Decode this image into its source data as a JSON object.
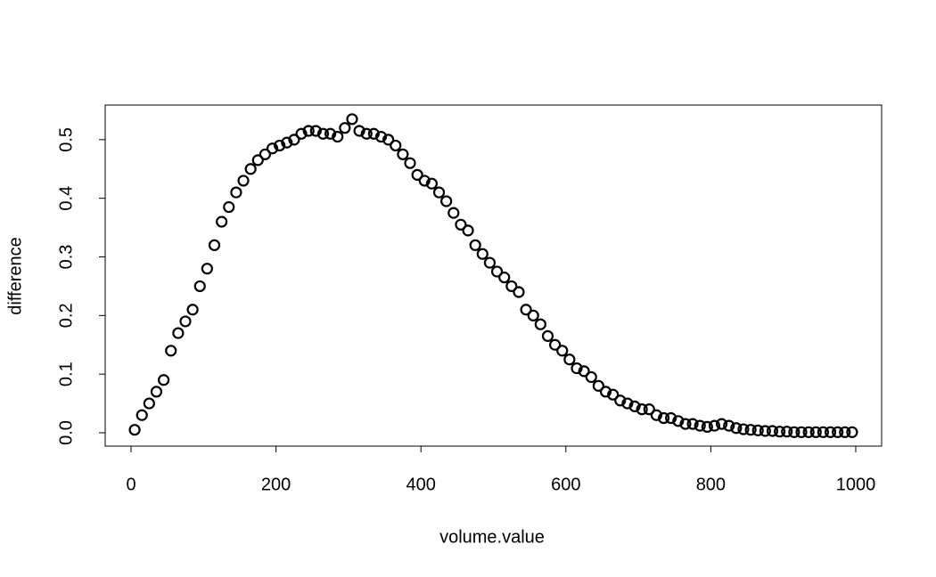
{
  "chart_data": {
    "type": "scatter",
    "xlabel": "volume.value",
    "ylabel": "difference",
    "color": "#000000",
    "x": [
      5,
      15,
      25,
      35,
      45,
      55,
      65,
      75,
      85,
      95,
      105,
      115,
      125,
      135,
      145,
      155,
      165,
      175,
      185,
      195,
      205,
      215,
      225,
      235,
      245,
      255,
      265,
      275,
      285,
      295,
      305,
      315,
      325,
      335,
      345,
      355,
      365,
      375,
      385,
      395,
      405,
      415,
      425,
      435,
      445,
      455,
      465,
      475,
      485,
      495,
      505,
      515,
      525,
      535,
      545,
      555,
      565,
      575,
      585,
      595,
      605,
      615,
      625,
      635,
      645,
      655,
      665,
      675,
      685,
      695,
      705,
      715,
      725,
      735,
      745,
      755,
      765,
      775,
      785,
      795,
      805,
      815,
      825,
      835,
      845,
      855,
      865,
      875,
      885,
      895,
      905,
      915,
      925,
      935,
      945,
      955,
      965,
      975,
      985,
      995
    ],
    "values": [
      0.005,
      0.03,
      0.05,
      0.07,
      0.09,
      0.14,
      0.17,
      0.19,
      0.21,
      0.25,
      0.28,
      0.32,
      0.36,
      0.385,
      0.41,
      0.43,
      0.45,
      0.465,
      0.475,
      0.485,
      0.49,
      0.495,
      0.5,
      0.51,
      0.515,
      0.515,
      0.51,
      0.51,
      0.505,
      0.52,
      0.535,
      0.515,
      0.51,
      0.51,
      0.505,
      0.5,
      0.49,
      0.475,
      0.46,
      0.44,
      0.43,
      0.425,
      0.41,
      0.395,
      0.375,
      0.355,
      0.345,
      0.32,
      0.305,
      0.29,
      0.275,
      0.265,
      0.25,
      0.24,
      0.21,
      0.2,
      0.185,
      0.165,
      0.15,
      0.14,
      0.125,
      0.11,
      0.105,
      0.095,
      0.08,
      0.07,
      0.065,
      0.055,
      0.05,
      0.045,
      0.04,
      0.04,
      0.03,
      0.025,
      0.025,
      0.02,
      0.015,
      0.015,
      0.012,
      0.01,
      0.012,
      0.015,
      0.012,
      0.008,
      0.006,
      0.005,
      0.004,
      0.003,
      0.003,
      0.002,
      0.002,
      0.001,
      0.001,
      0.001,
      0.001,
      0.001,
      0.001,
      0.001,
      0.001,
      0.001
    ],
    "xlim": [
      -35.7,
      1035.7
    ],
    "ylim": [
      -0.0228,
      0.559
    ],
    "xticks": [
      0,
      200,
      400,
      600,
      800,
      1000
    ],
    "yticks": [
      {
        "value": 0,
        "label": "0.0"
      },
      0.1,
      0.2,
      0.3,
      0.4,
      0.5
    ]
  }
}
